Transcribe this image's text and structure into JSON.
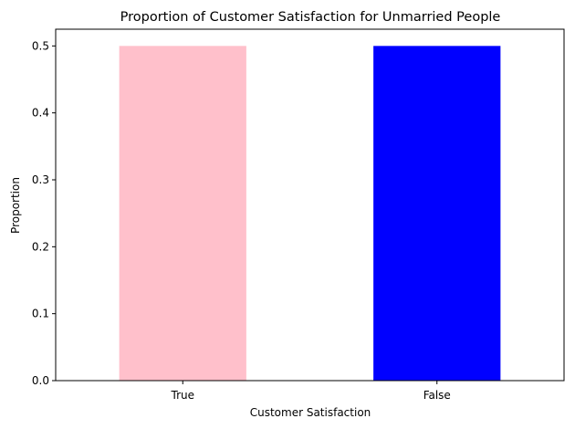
{
  "chart_data": {
    "type": "bar",
    "title": "Proportion of Customer Satisfaction for Unmarried People",
    "xlabel": "Customer Satisfaction",
    "ylabel": "Proportion",
    "categories": [
      "True",
      "False"
    ],
    "values": [
      0.5,
      0.5
    ],
    "colors": [
      "#FFC0CB",
      "#0000FF"
    ],
    "ylim": [
      0,
      0.525
    ],
    "yticks": [
      0.0,
      0.1,
      0.2,
      0.3,
      0.4,
      0.5
    ],
    "ytick_labels": [
      "0.0",
      "0.1",
      "0.2",
      "0.3",
      "0.4",
      "0.5"
    ],
    "grid": false,
    "legend": "none"
  }
}
